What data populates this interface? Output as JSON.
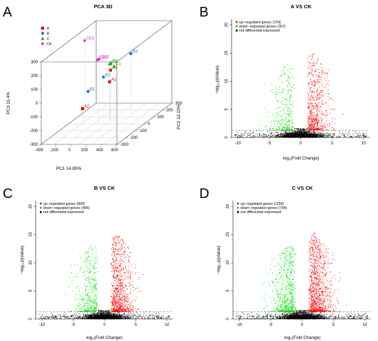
{
  "panel_letters": [
    "A",
    "B",
    "C",
    "D"
  ],
  "chart_data": [
    {
      "type": "scatter",
      "panel": "A",
      "title": "PCA 3D",
      "xlabel": "PC1 14.85%",
      "ylabel": "PC2 12.23%",
      "zlabel": "PC3 11.4%",
      "xlim": [
        -400,
        600
      ],
      "ylim": [
        -300,
        300
      ],
      "zlim": [
        -300,
        300
      ],
      "xticks": [
        "-400",
        "-200",
        "0",
        "200",
        "400",
        "600"
      ],
      "yticks": [
        "-300",
        "-200",
        "-100",
        "0",
        "100",
        "200",
        "300"
      ],
      "zticks": [
        "-300",
        "-200",
        "-100",
        "0",
        "100",
        "200",
        "300"
      ],
      "legend": [
        {
          "name": "A",
          "color": "#d40000",
          "shape": "square"
        },
        {
          "name": "B",
          "color": "#1a6fd6",
          "shape": "circle"
        },
        {
          "name": "C",
          "color": "#1aa81a",
          "shape": "triangle"
        },
        {
          "name": "CK",
          "color": "#cc33cc",
          "shape": "diamond"
        }
      ],
      "points": [
        {
          "label": "A1",
          "group": "A",
          "x": 80,
          "y": 50,
          "z": -20
        },
        {
          "label": "A2",
          "group": "A",
          "x": -120,
          "y": -80,
          "z": -150
        },
        {
          "label": "A3",
          "group": "A",
          "x": 80,
          "y": 60,
          "z": 60
        },
        {
          "label": "B1",
          "group": "B",
          "x": -180,
          "y": 30,
          "z": -80
        },
        {
          "label": "B2",
          "group": "B",
          "x": 60,
          "y": 0,
          "z": 40
        },
        {
          "label": "B3",
          "group": "B",
          "x": 300,
          "y": 100,
          "z": 160
        },
        {
          "label": "C1",
          "group": "C",
          "x": 200,
          "y": 0,
          "z": 120
        },
        {
          "label": "C2",
          "group": "C",
          "x": 160,
          "y": 0,
          "z": 140
        },
        {
          "label": "C3",
          "group": "C",
          "x": 80,
          "y": 50,
          "z": 110
        },
        {
          "label": "CK1",
          "group": "CK",
          "x": -250,
          "y": 50,
          "z": 280
        },
        {
          "label": "CK2",
          "group": "CK",
          "x": -20,
          "y": 20,
          "z": 160
        },
        {
          "label": "CK3",
          "group": "CK",
          "x": -80,
          "y": 50,
          "z": 140
        }
      ]
    },
    {
      "type": "scatter",
      "panel": "B",
      "title": "A VS CK",
      "xlabel": "log₂(Fold Change)",
      "ylabel": "−log₁₀(qValue)",
      "xlim": [
        -11,
        11
      ],
      "ylim": [
        0,
        21
      ],
      "xticks": [
        "-10",
        "-5",
        "0",
        "5",
        "10"
      ],
      "yticks": [
        "0",
        "5",
        "10",
        "15",
        "20"
      ],
      "legend": [
        {
          "name": "up−regulated genes (724)",
          "color": "#ff0000"
        },
        {
          "name": "down−regulated genes (397)",
          "color": "#00cc00"
        },
        {
          "name": "not differential expressed",
          "color": "#000000"
        }
      ],
      "up_count": 724,
      "down_count": 397,
      "threshold_y": 1.3,
      "threshold_x": [
        -1,
        1
      ]
    },
    {
      "type": "scatter",
      "panel": "C",
      "title": "B VS CK",
      "xlabel": "log₂(Fold Change)",
      "ylabel": "−log₁₀(qValue)",
      "xlim": [
        -11,
        11
      ],
      "ylim": [
        0,
        21
      ],
      "xticks": [
        "-10",
        "-5",
        "0",
        "5",
        "10"
      ],
      "yticks": [
        "0",
        "5",
        "10",
        "15",
        "20"
      ],
      "legend": [
        {
          "name": "up−regulated genes (990)",
          "color": "#ff0000"
        },
        {
          "name": "down−regulated genes (496)",
          "color": "#00cc00"
        },
        {
          "name": "not differential expressed",
          "color": "#000000"
        }
      ],
      "up_count": 990,
      "down_count": 496,
      "threshold_y": 1.3,
      "threshold_x": [
        -1,
        1
      ]
    },
    {
      "type": "scatter",
      "panel": "D",
      "title": "C VS CK",
      "xlabel": "log₂(Fold Change)",
      "ylabel": "−log₁₀(qValue)",
      "xlim": [
        -11,
        11
      ],
      "ylim": [
        0,
        21
      ],
      "xticks": [
        "-10",
        "-5",
        "0",
        "5",
        "10"
      ],
      "yticks": [
        "0",
        "5",
        "10",
        "15",
        "20"
      ],
      "legend": [
        {
          "name": "up−regulated genes (1159)",
          "color": "#ff0000"
        },
        {
          "name": "down−regulated genes (794)",
          "color": "#00cc00"
        },
        {
          "name": "not differential expressed",
          "color": "#000000"
        }
      ],
      "up_count": 1159,
      "down_count": 794,
      "threshold_y": 1.3,
      "threshold_x": [
        -1,
        1
      ]
    }
  ]
}
